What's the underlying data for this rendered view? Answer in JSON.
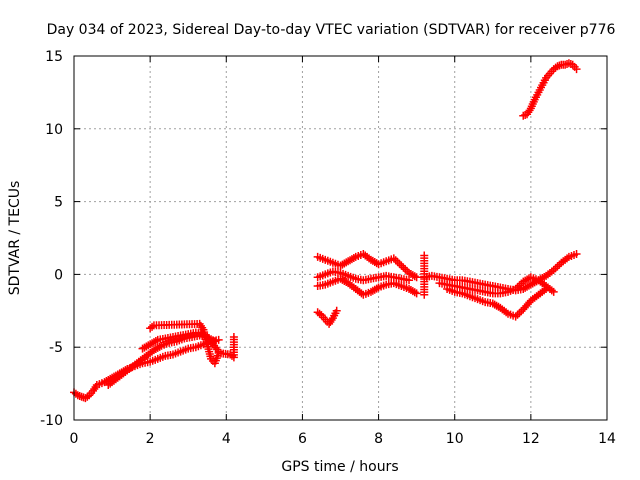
{
  "chart_data": {
    "type": "scatter",
    "title": "Day 034 of 2023, Sidereal Day-to-day VTEC variation (SDTVAR) for receiver p776",
    "xlabel": "GPS time / hours",
    "ylabel": "SDTVAR / TECUs",
    "xlim": [
      0,
      14
    ],
    "ylim": [
      -10,
      15
    ],
    "xticks": [
      "0",
      "2",
      "4",
      "6",
      "8",
      "10",
      "12",
      "14"
    ],
    "yticks": [
      "-10",
      "-5",
      "0",
      "5",
      "10",
      "15"
    ],
    "grid": true,
    "marker": "+",
    "series_color": "#ff0000",
    "series": [
      {
        "x": [
          0.0,
          0.1,
          0.2,
          0.3,
          0.4,
          0.5,
          0.6,
          0.8,
          1.0,
          1.2,
          1.4,
          1.6,
          1.8,
          2.0,
          2.2,
          2.4,
          2.6,
          2.8,
          3.0,
          3.2,
          3.4,
          3.6,
          3.8
        ],
        "y": [
          -8.1,
          -8.3,
          -8.4,
          -8.5,
          -8.3,
          -8.0,
          -7.6,
          -7.4,
          -7.1,
          -6.8,
          -6.5,
          -6.3,
          -6.1,
          -6.0,
          -5.8,
          -5.6,
          -5.5,
          -5.3,
          -5.1,
          -5.0,
          -4.8,
          -4.6,
          -4.5
        ]
      },
      {
        "x": [
          0.9,
          1.1,
          1.3,
          1.5,
          1.7,
          1.9,
          2.1,
          2.3,
          2.5,
          2.7,
          2.9,
          3.1,
          3.3,
          3.5,
          3.7
        ],
        "y": [
          -7.6,
          -7.2,
          -6.8,
          -6.4,
          -6.0,
          -5.6,
          -5.2,
          -4.9,
          -4.7,
          -4.6,
          -4.4,
          -4.3,
          -4.2,
          -4.3,
          -4.6
        ]
      },
      {
        "x": [
          1.8,
          2.0,
          2.2,
          2.4,
          2.6,
          2.8,
          3.0,
          3.2,
          3.4,
          3.6,
          3.8
        ],
        "y": [
          -5.1,
          -4.8,
          -4.5,
          -4.4,
          -4.3,
          -4.2,
          -4.1,
          -4.0,
          -4.1,
          -4.6,
          -5.3
        ]
      },
      {
        "x": [
          2.0,
          2.1,
          3.3,
          3.4,
          3.6,
          3.7,
          3.8,
          4.1,
          4.2,
          4.2
        ],
        "y": [
          -3.7,
          -3.5,
          -3.4,
          -3.8,
          -5.8,
          -6.1,
          -5.4,
          -5.5,
          -5.7,
          -4.3
        ]
      },
      {
        "x": [
          6.4,
          6.6,
          6.8,
          7.0,
          7.2,
          7.4,
          7.6,
          7.8,
          8.0,
          8.2,
          8.4,
          8.6,
          8.8,
          9.0
        ],
        "y": [
          1.2,
          1.0,
          0.8,
          0.6,
          0.9,
          1.2,
          1.4,
          1.0,
          0.7,
          0.9,
          1.1,
          0.6,
          0.1,
          -0.2
        ]
      },
      {
        "x": [
          6.4,
          6.6,
          6.8,
          7.0,
          7.2,
          7.4,
          7.6,
          7.8,
          8.0,
          8.2,
          8.4,
          8.6,
          8.8
        ],
        "y": [
          -0.2,
          0.0,
          0.2,
          0.1,
          -0.1,
          -0.3,
          -0.4,
          -0.3,
          -0.2,
          -0.1,
          -0.2,
          -0.3,
          -0.4
        ]
      },
      {
        "x": [
          6.4,
          6.6,
          6.8,
          7.0,
          7.2,
          7.4,
          7.6,
          7.8,
          8.0,
          8.2,
          8.4,
          8.6,
          8.8,
          9.0
        ],
        "y": [
          -0.8,
          -0.7,
          -0.5,
          -0.3,
          -0.6,
          -1.0,
          -1.4,
          -1.2,
          -0.9,
          -0.7,
          -0.6,
          -0.8,
          -1.0,
          -1.3
        ]
      },
      {
        "x": [
          6.4,
          6.5,
          6.6,
          6.7,
          6.8,
          6.9
        ],
        "y": [
          -2.6,
          -2.8,
          -3.1,
          -3.4,
          -3.0,
          -2.5
        ]
      },
      {
        "x": [
          9.2,
          9.4,
          9.6,
          9.8,
          10.0,
          10.2,
          10.4,
          10.6,
          10.8,
          11.0,
          11.2,
          11.4,
          11.6,
          11.8,
          12.0,
          12.2,
          12.4,
          12.6,
          12.8,
          13.0,
          13.2
        ],
        "y": [
          -0.2,
          -0.1,
          -0.2,
          -0.3,
          -0.4,
          -0.4,
          -0.5,
          -0.6,
          -0.7,
          -0.8,
          -0.9,
          -1.0,
          -1.1,
          -1.0,
          -0.7,
          -0.4,
          -0.1,
          0.3,
          0.8,
          1.2,
          1.4
        ]
      },
      {
        "x": [
          9.6,
          9.8,
          10.0,
          10.2,
          10.4,
          10.6,
          10.8,
          11.0,
          11.2,
          11.4,
          11.6,
          11.8,
          12.0,
          12.2,
          12.4,
          12.6
        ],
        "y": [
          -0.6,
          -0.7,
          -0.8,
          -0.9,
          -1.0,
          -1.1,
          -1.2,
          -1.3,
          -1.3,
          -1.2,
          -1.0,
          -0.5,
          -0.2,
          -0.4,
          -0.8,
          -1.2
        ]
      },
      {
        "x": [
          9.8,
          10.0,
          10.2,
          10.4,
          10.6,
          10.8,
          11.0,
          11.2,
          11.4,
          11.6,
          11.8,
          12.0,
          12.2,
          12.4
        ],
        "y": [
          -1.0,
          -1.2,
          -1.3,
          -1.5,
          -1.7,
          -1.9,
          -2.0,
          -2.3,
          -2.7,
          -2.9,
          -2.4,
          -1.8,
          -1.4,
          -1.0
        ]
      },
      {
        "x": [
          9.2,
          9.2,
          9.2,
          9.2
        ],
        "y": [
          1.3,
          0.4,
          -0.5,
          -1.4
        ]
      },
      {
        "x": [
          11.8,
          11.9,
          12.0,
          12.1,
          12.2,
          12.3,
          12.4,
          12.5,
          12.6,
          12.7,
          12.8,
          12.9,
          13.0,
          13.1,
          13.2
        ],
        "y": [
          10.9,
          11.0,
          11.4,
          12.0,
          12.5,
          13.0,
          13.5,
          13.8,
          14.1,
          14.3,
          14.4,
          14.4,
          14.5,
          14.4,
          14.1
        ]
      }
    ]
  }
}
